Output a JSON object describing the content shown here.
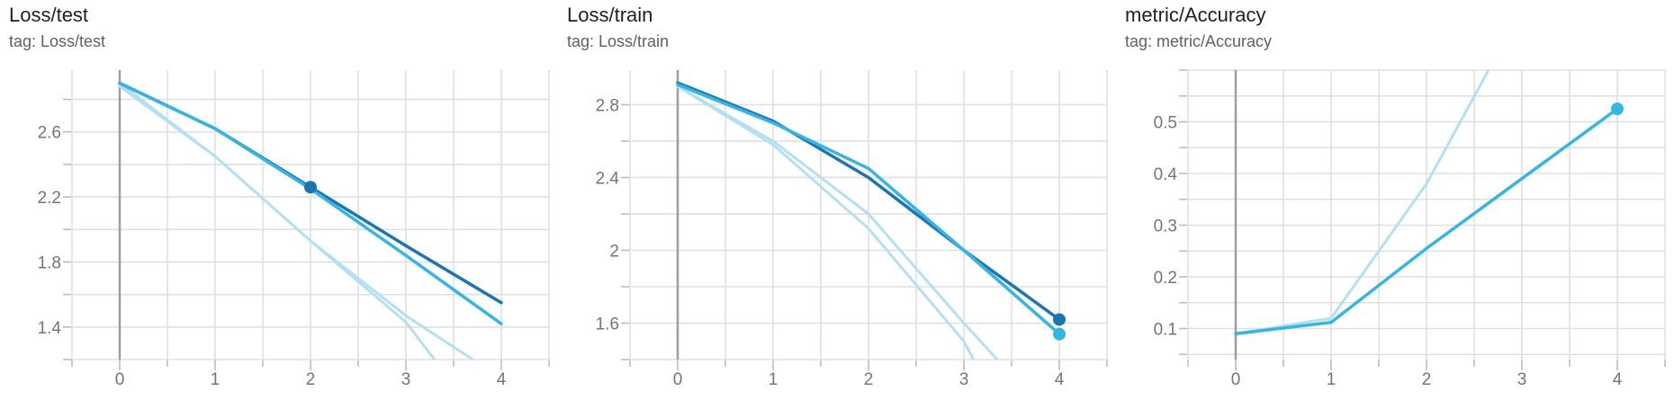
{
  "colors": {
    "dark_blue": "#1b74b4",
    "light_blue": "#33b5e5",
    "faded_blue": "#b3e0f2",
    "grid": "#e0e0e0",
    "zero_line": "#9e9e9e",
    "tick_text": "#757575"
  },
  "chart_data": [
    {
      "type": "line",
      "title": "Loss/test",
      "subtitle": "tag: Loss/test",
      "x_ticks": [
        "0",
        "1",
        "2",
        "3",
        "4"
      ],
      "y_ticks": [
        "1.4",
        "1.8",
        "2.2",
        "2.6"
      ],
      "y_tick_values": [
        1.4,
        1.8,
        2.2,
        2.6
      ],
      "xlim": [
        -0.5,
        4.5
      ],
      "ylim": [
        1.2,
        2.98
      ],
      "grid": true,
      "series": [
        {
          "color": "dark_blue",
          "faded": false,
          "x": [
            0,
            1,
            2,
            3,
            4
          ],
          "y": [
            2.9,
            2.62,
            2.26,
            1.9,
            1.55
          ],
          "marker_at": 2
        },
        {
          "color": "light_blue",
          "faded": false,
          "x": [
            0,
            1,
            2,
            3,
            4
          ],
          "y": [
            2.9,
            2.62,
            2.25,
            1.84,
            1.42
          ],
          "marker_at": null
        },
        {
          "color": "faded_blue",
          "faded": true,
          "x": [
            0,
            1,
            2,
            3,
            3.3
          ],
          "y": [
            2.88,
            2.45,
            1.93,
            1.43,
            1.2
          ],
          "marker_at": null
        },
        {
          "color": "faded_blue",
          "faded": true,
          "x": [
            0,
            1,
            2,
            3,
            3.7
          ],
          "y": [
            2.9,
            2.45,
            1.93,
            1.47,
            1.2
          ],
          "marker_at": null
        }
      ]
    },
    {
      "type": "line",
      "title": "Loss/train",
      "subtitle": "tag: Loss/train",
      "x_ticks": [
        "0",
        "1",
        "2",
        "3",
        "4"
      ],
      "y_ticks": [
        "1.6",
        "2",
        "2.4",
        "2.8"
      ],
      "y_tick_values": [
        1.6,
        2.0,
        2.4,
        2.8
      ],
      "xlim": [
        -0.5,
        4.5
      ],
      "ylim": [
        1.4,
        2.99
      ],
      "grid": true,
      "series": [
        {
          "color": "dark_blue",
          "faded": false,
          "x": [
            0,
            1,
            2,
            3,
            4
          ],
          "y": [
            2.92,
            2.71,
            2.4,
            2.0,
            1.62
          ],
          "marker_at": 4
        },
        {
          "color": "light_blue",
          "faded": false,
          "x": [
            0,
            1,
            2,
            3,
            4
          ],
          "y": [
            2.91,
            2.7,
            2.45,
            2.0,
            1.54
          ],
          "marker_at": 4
        },
        {
          "color": "faded_blue",
          "faded": true,
          "x": [
            0,
            1,
            2,
            3,
            3.35
          ],
          "y": [
            2.9,
            2.6,
            2.2,
            1.6,
            1.4
          ],
          "marker_at": null
        },
        {
          "color": "faded_blue",
          "faded": true,
          "x": [
            0,
            1,
            2,
            3,
            3.1
          ],
          "y": [
            2.9,
            2.58,
            2.12,
            1.5,
            1.4
          ],
          "marker_at": null
        }
      ]
    },
    {
      "type": "line",
      "title": "metric/Accuracy",
      "subtitle": "tag: metric/Accuracy",
      "x_ticks": [
        "0",
        "1",
        "2",
        "3",
        "4"
      ],
      "y_ticks": [
        "0.1",
        "0.2",
        "0.3",
        "0.4",
        "0.5"
      ],
      "y_tick_values": [
        0.1,
        0.2,
        0.3,
        0.4,
        0.5
      ],
      "xlim": [
        -0.5,
        4.5
      ],
      "ylim": [
        0.04,
        0.6
      ],
      "grid": true,
      "series": [
        {
          "color": "light_blue",
          "faded": false,
          "x": [
            0,
            1,
            2,
            3,
            4
          ],
          "y": [
            0.09,
            0.112,
            0.255,
            0.39,
            0.525
          ],
          "marker_at": 4
        },
        {
          "color": "faded_blue",
          "faded": true,
          "x": [
            0,
            1,
            2,
            2.65
          ],
          "y": [
            0.09,
            0.12,
            0.38,
            0.6
          ],
          "marker_at": null
        }
      ]
    }
  ]
}
